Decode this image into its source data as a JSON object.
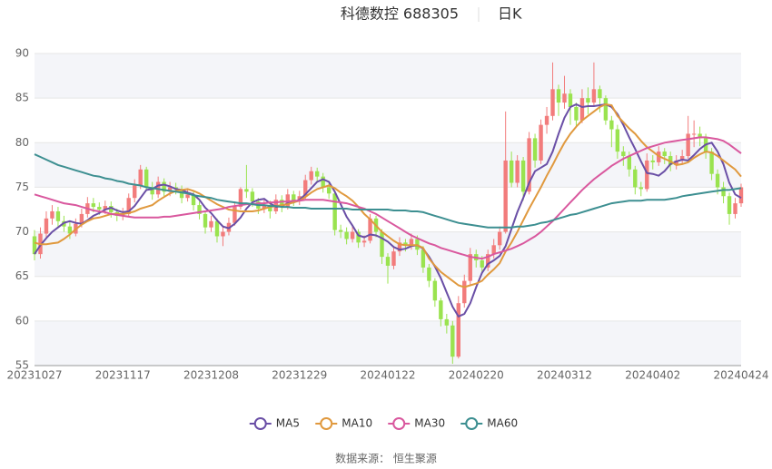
{
  "chart_data": {
    "type": "candlestick",
    "title": "科德数控 688305",
    "subtitle": "日K",
    "categories": [
      "20231027",
      null,
      null,
      null,
      null,
      null,
      null,
      null,
      null,
      null,
      null,
      null,
      null,
      null,
      null,
      "20231117",
      null,
      null,
      null,
      null,
      null,
      null,
      null,
      null,
      null,
      null,
      null,
      null,
      null,
      null,
      "20231208",
      null,
      null,
      null,
      null,
      null,
      null,
      null,
      null,
      null,
      null,
      null,
      null,
      null,
      null,
      "20231229",
      null,
      null,
      null,
      null,
      null,
      null,
      null,
      null,
      null,
      null,
      null,
      null,
      null,
      null,
      "20240122",
      null,
      null,
      null,
      null,
      null,
      null,
      null,
      null,
      null,
      null,
      null,
      null,
      null,
      null,
      "20240220",
      null,
      null,
      null,
      null,
      null,
      null,
      null,
      null,
      null,
      null,
      null,
      null,
      null,
      null,
      "20240312",
      null,
      null,
      null,
      null,
      null,
      null,
      null,
      null,
      null,
      null,
      null,
      null,
      null,
      null,
      "20240402",
      null,
      null,
      null,
      null,
      null,
      null,
      null,
      null,
      null,
      null,
      null,
      null,
      null,
      null,
      "20240424"
    ],
    "values": [
      [
        69.5,
        67.5,
        66.8,
        70.2
      ],
      [
        67.5,
        69.8,
        67.0,
        70.5
      ],
      [
        69.8,
        71.5,
        69.2,
        72.3
      ],
      [
        71.5,
        72.3,
        70.8,
        73.0
      ],
      [
        72.3,
        71.2,
        70.6,
        72.8
      ],
      [
        71.2,
        70.6,
        70.0,
        71.8
      ],
      [
        70.6,
        69.8,
        69.2,
        71.2
      ],
      [
        69.8,
        70.9,
        69.5,
        71.5
      ],
      [
        70.9,
        72.0,
        70.5,
        72.6
      ],
      [
        72.0,
        73.2,
        71.6,
        73.9
      ],
      [
        73.2,
        72.8,
        72.2,
        73.8
      ],
      [
        72.8,
        72.5,
        71.9,
        73.3
      ],
      [
        72.5,
        72.9,
        72.0,
        73.5
      ],
      [
        72.9,
        72.2,
        71.6,
        73.4
      ],
      [
        72.2,
        71.8,
        71.2,
        72.6
      ],
      [
        71.8,
        72.0,
        71.3,
        72.7
      ],
      [
        72.0,
        73.8,
        71.7,
        74.3
      ],
      [
        73.8,
        75.2,
        73.3,
        75.9
      ],
      [
        75.2,
        77.0,
        74.8,
        77.5
      ],
      [
        77.0,
        75.0,
        74.6,
        77.3
      ],
      [
        75.0,
        74.2,
        73.6,
        75.6
      ],
      [
        74.2,
        75.6,
        73.8,
        76.2
      ],
      [
        75.6,
        74.5,
        74.0,
        76.0
      ],
      [
        74.5,
        75.0,
        74.0,
        75.6
      ],
      [
        75.0,
        74.8,
        74.2,
        75.5
      ],
      [
        74.8,
        73.8,
        73.2,
        75.2
      ],
      [
        73.8,
        74.2,
        73.4,
        74.8
      ],
      [
        74.2,
        73.0,
        72.4,
        74.6
      ],
      [
        73.0,
        72.0,
        71.4,
        73.4
      ],
      [
        72.0,
        70.5,
        69.8,
        72.3
      ],
      [
        70.5,
        71.2,
        70.0,
        71.8
      ],
      [
        71.2,
        69.5,
        68.8,
        71.5
      ],
      [
        69.5,
        70.0,
        68.4,
        70.6
      ],
      [
        70.0,
        71.0,
        69.6,
        71.6
      ],
      [
        71.0,
        72.8,
        70.7,
        73.4
      ],
      [
        72.8,
        74.8,
        72.5,
        75.0
      ],
      [
        74.8,
        74.5,
        73.8,
        77.5
      ],
      [
        74.5,
        73.4,
        72.8,
        74.9
      ],
      [
        73.4,
        72.6,
        72.0,
        73.8
      ],
      [
        72.6,
        73.0,
        72.1,
        73.6
      ],
      [
        73.0,
        72.3,
        71.5,
        73.5
      ],
      [
        72.3,
        73.6,
        72.0,
        74.2
      ],
      [
        73.6,
        72.8,
        72.2,
        74.1
      ],
      [
        72.8,
        74.2,
        72.5,
        74.8
      ],
      [
        74.2,
        73.5,
        72.9,
        74.6
      ],
      [
        73.5,
        74.0,
        73.0,
        74.6
      ],
      [
        74.0,
        75.8,
        73.7,
        76.4
      ],
      [
        75.8,
        76.8,
        75.3,
        77.3
      ],
      [
        76.8,
        76.2,
        75.6,
        77.2
      ],
      [
        76.2,
        75.0,
        74.4,
        76.6
      ],
      [
        75.0,
        74.3,
        73.7,
        75.5
      ],
      [
        74.3,
        70.2,
        69.6,
        74.6
      ],
      [
        70.2,
        70.0,
        69.3,
        70.8
      ],
      [
        70.0,
        69.2,
        68.6,
        70.5
      ],
      [
        69.2,
        70.0,
        68.8,
        70.6
      ],
      [
        70.0,
        68.8,
        68.2,
        70.3
      ],
      [
        68.8,
        69.0,
        68.3,
        69.6
      ],
      [
        69.0,
        71.5,
        68.7,
        72.0
      ],
      [
        71.5,
        70.0,
        69.4,
        71.8
      ],
      [
        70.0,
        67.2,
        66.4,
        70.3
      ],
      [
        67.2,
        66.2,
        64.2,
        67.6
      ],
      [
        66.2,
        67.8,
        65.8,
        68.4
      ],
      [
        67.8,
        68.8,
        67.3,
        69.4
      ],
      [
        68.8,
        68.5,
        67.8,
        69.2
      ],
      [
        68.5,
        69.2,
        68.0,
        69.8
      ],
      [
        69.2,
        68.0,
        67.4,
        69.6
      ],
      [
        68.0,
        66.0,
        65.4,
        68.4
      ],
      [
        66.0,
        64.5,
        63.8,
        66.4
      ],
      [
        64.5,
        62.3,
        61.6,
        64.8
      ],
      [
        62.3,
        60.2,
        59.4,
        62.6
      ],
      [
        60.2,
        59.5,
        58.6,
        60.8
      ],
      [
        59.5,
        56.0,
        55.2,
        60.0
      ],
      [
        56.0,
        62.0,
        55.8,
        62.8
      ],
      [
        62.0,
        64.5,
        61.5,
        65.2
      ],
      [
        64.5,
        67.5,
        64.0,
        68.2
      ],
      [
        67.5,
        66.8,
        66.0,
        68.0
      ],
      [
        66.8,
        66.0,
        65.4,
        67.3
      ],
      [
        66.0,
        67.5,
        65.6,
        68.0
      ],
      [
        67.5,
        68.5,
        67.0,
        69.2
      ],
      [
        68.5,
        70.0,
        68.0,
        70.6
      ],
      [
        70.0,
        78.0,
        69.8,
        83.5
      ],
      [
        78.0,
        75.5,
        75.0,
        79.0
      ],
      [
        75.5,
        78.0,
        75.0,
        78.6
      ],
      [
        78.0,
        74.5,
        73.5,
        78.4
      ],
      [
        74.5,
        80.5,
        74.2,
        81.2
      ],
      [
        80.5,
        78.0,
        77.2,
        81.0
      ],
      [
        78.0,
        82.0,
        77.6,
        82.6
      ],
      [
        82.0,
        83.0,
        81.0,
        84.0
      ],
      [
        83.0,
        86.0,
        82.5,
        89.0
      ],
      [
        86.0,
        84.5,
        83.0,
        86.5
      ],
      [
        84.5,
        85.5,
        83.8,
        87.5
      ],
      [
        85.5,
        84.0,
        82.0,
        86.0
      ],
      [
        84.0,
        82.5,
        81.8,
        84.5
      ],
      [
        82.5,
        85.0,
        82.2,
        86.0
      ],
      [
        85.0,
        84.5,
        83.2,
        86.2
      ],
      [
        84.5,
        86.0,
        84.0,
        89.0
      ],
      [
        86.0,
        85.0,
        83.4,
        86.4
      ],
      [
        85.0,
        82.5,
        82.0,
        85.3
      ],
      [
        82.5,
        81.5,
        79.5,
        83.0
      ],
      [
        81.5,
        79.0,
        78.2,
        82.0
      ],
      [
        79.0,
        78.5,
        77.4,
        79.6
      ],
      [
        78.5,
        77.0,
        76.2,
        79.0
      ],
      [
        77.0,
        75.0,
        74.2,
        77.4
      ],
      [
        75.0,
        74.8,
        74.0,
        75.6
      ],
      [
        74.8,
        78.0,
        74.5,
        78.8
      ],
      [
        78.0,
        77.8,
        77.0,
        78.6
      ],
      [
        77.8,
        79.0,
        77.4,
        79.6
      ],
      [
        79.0,
        78.5,
        77.6,
        79.4
      ],
      [
        78.5,
        77.5,
        76.8,
        79.0
      ],
      [
        77.5,
        78.0,
        77.0,
        78.6
      ],
      [
        78.0,
        78.5,
        77.6,
        79.2
      ],
      [
        78.5,
        81.0,
        78.2,
        83.0
      ],
      [
        81.0,
        81.0,
        79.5,
        82.5
      ],
      [
        81.0,
        80.5,
        79.6,
        81.8
      ],
      [
        80.5,
        79.0,
        78.2,
        81.0
      ],
      [
        79.0,
        76.5,
        75.8,
        79.4
      ],
      [
        76.5,
        75.0,
        74.2,
        77.0
      ],
      [
        75.0,
        74.0,
        73.2,
        75.6
      ],
      [
        74.0,
        72.0,
        70.8,
        74.4
      ],
      [
        72.0,
        73.2,
        71.5,
        73.8
      ],
      [
        73.2,
        75.0,
        72.8,
        75.4
      ]
    ],
    "up_color": "#f27c7c",
    "down_color": "#9ae34f",
    "series": [
      {
        "name": "MA5",
        "color": "#6a4fa6",
        "values": [
          67.5,
          68.5,
          69.3,
          70.0,
          70.5,
          71.0,
          71.2,
          71.0,
          70.9,
          71.3,
          71.8,
          72.1,
          72.5,
          72.7,
          72.4,
          72.2,
          72.3,
          72.9,
          73.8,
          74.7,
          74.8,
          75.2,
          75.3,
          75.1,
          74.8,
          74.7,
          74.4,
          74.2,
          73.6,
          72.7,
          72.1,
          71.3,
          70.6,
          70.4,
          70.9,
          71.6,
          72.6,
          73.3,
          73.6,
          73.7,
          73.2,
          72.8,
          72.9,
          73.2,
          73.3,
          73.6,
          74.2,
          74.9,
          75.6,
          75.9,
          75.6,
          74.5,
          73.1,
          71.7,
          70.7,
          69.6,
          69.4,
          69.7,
          69.6,
          69.3,
          68.9,
          68.3,
          68.0,
          68.1,
          68.4,
          68.5,
          68.1,
          67.2,
          66.1,
          64.8,
          63.2,
          61.6,
          60.5,
          60.8,
          62.0,
          63.8,
          65.4,
          66.4,
          66.8,
          67.3,
          68.4,
          70.3,
          72.2,
          73.8,
          75.5,
          76.8,
          77.2,
          77.6,
          79.0,
          81.0,
          82.8,
          84.0,
          84.3,
          84.0,
          84.1,
          84.1,
          84.2,
          84.3,
          84.0,
          83.2,
          82.0,
          80.6,
          79.3,
          77.9,
          76.6,
          76.5,
          76.3,
          76.8,
          77.6,
          77.9,
          78.1,
          78.0,
          78.6,
          79.3,
          79.8,
          80.0,
          79.0,
          77.6,
          75.5,
          74.2,
          73.8
        ]
      },
      {
        "name": "MA10",
        "color": "#e0993e",
        "values": [
          68.8,
          68.6,
          68.6,
          68.7,
          68.8,
          69.2,
          69.7,
          70.3,
          70.8,
          71.2,
          71.5,
          71.6,
          71.8,
          72.0,
          72.0,
          72.0,
          72.1,
          72.3,
          72.6,
          72.8,
          73.0,
          73.5,
          73.9,
          74.3,
          74.6,
          74.7,
          74.8,
          74.6,
          74.3,
          73.9,
          73.5,
          73.1,
          72.8,
          72.5,
          72.4,
          72.3,
          72.3,
          72.3,
          72.4,
          72.6,
          72.8,
          72.9,
          73.0,
          73.1,
          73.3,
          73.5,
          73.9,
          74.4,
          74.8,
          75.0,
          75.2,
          74.9,
          74.4,
          74.0,
          73.5,
          72.8,
          72.0,
          71.4,
          70.7,
          70.0,
          69.5,
          69.0,
          68.6,
          68.5,
          68.5,
          68.5,
          68.2,
          67.0,
          66.2,
          65.5,
          65.0,
          64.5,
          64.0,
          63.8,
          64.0,
          64.2,
          64.5,
          65.2,
          65.8,
          66.5,
          67.8,
          68.8,
          70.0,
          71.3,
          72.6,
          73.8,
          75.0,
          76.3,
          77.5,
          78.8,
          80.0,
          81.0,
          81.8,
          82.5,
          83.0,
          83.5,
          84.0,
          84.3,
          84.2,
          83.0,
          82.3,
          81.6,
          81.0,
          80.2,
          79.5,
          79.0,
          78.5,
          78.2,
          77.9,
          77.5,
          77.6,
          77.8,
          78.3,
          78.7,
          79.0,
          78.9,
          78.5,
          78.0,
          77.5,
          77.0,
          76.2
        ]
      },
      {
        "name": "MA30",
        "color": "#d9589e",
        "values": [
          74.2,
          74.0,
          73.8,
          73.6,
          73.4,
          73.2,
          73.1,
          73.0,
          72.8,
          72.6,
          72.4,
          72.3,
          72.2,
          72.0,
          71.9,
          71.8,
          71.7,
          71.6,
          71.6,
          71.6,
          71.6,
          71.6,
          71.7,
          71.7,
          71.8,
          71.9,
          72.0,
          72.1,
          72.2,
          72.3,
          72.4,
          72.5,
          72.6,
          72.8,
          72.9,
          73.0,
          73.1,
          73.1,
          73.2,
          73.2,
          73.3,
          73.3,
          73.4,
          73.4,
          73.5,
          73.5,
          73.6,
          73.6,
          73.6,
          73.6,
          73.5,
          73.4,
          73.3,
          73.2,
          73.0,
          72.8,
          72.6,
          72.3,
          72.0,
          71.6,
          71.2,
          70.8,
          70.4,
          70.0,
          69.6,
          69.3,
          69.0,
          68.7,
          68.5,
          68.2,
          68.0,
          67.8,
          67.6,
          67.4,
          67.2,
          67.1,
          67.0,
          67.2,
          67.5,
          67.7,
          67.9,
          68.1,
          68.4,
          68.7,
          69.1,
          69.5,
          70.0,
          70.6,
          71.2,
          71.9,
          72.6,
          73.3,
          74.0,
          74.7,
          75.3,
          75.9,
          76.4,
          76.9,
          77.4,
          77.8,
          78.2,
          78.5,
          78.8,
          79.1,
          79.4,
          79.6,
          79.8,
          80.0,
          80.1,
          80.2,
          80.3,
          80.4,
          80.5,
          80.6,
          80.6,
          80.5,
          80.4,
          80.2,
          79.8,
          79.3,
          78.8
        ]
      },
      {
        "name": "MA60",
        "color": "#3d8f91",
        "values": [
          78.7,
          78.4,
          78.1,
          77.8,
          77.5,
          77.3,
          77.1,
          76.9,
          76.7,
          76.5,
          76.3,
          76.2,
          76.0,
          75.9,
          75.7,
          75.6,
          75.4,
          75.3,
          75.2,
          75.0,
          74.9,
          74.8,
          74.7,
          74.6,
          74.5,
          74.4,
          74.3,
          74.1,
          74.0,
          73.9,
          73.8,
          73.6,
          73.5,
          73.4,
          73.3,
          73.2,
          73.2,
          73.1,
          73.0,
          73.0,
          72.9,
          72.9,
          72.8,
          72.8,
          72.7,
          72.7,
          72.7,
          72.6,
          72.6,
          72.6,
          72.6,
          72.6,
          72.6,
          72.6,
          72.5,
          72.5,
          72.5,
          72.5,
          72.5,
          72.5,
          72.5,
          72.4,
          72.4,
          72.4,
          72.3,
          72.3,
          72.2,
          72.0,
          71.8,
          71.6,
          71.4,
          71.2,
          71.0,
          70.9,
          70.8,
          70.7,
          70.6,
          70.5,
          70.5,
          70.5,
          70.5,
          70.5,
          70.6,
          70.6,
          70.7,
          70.8,
          71.0,
          71.1,
          71.3,
          71.5,
          71.7,
          71.9,
          72.0,
          72.2,
          72.4,
          72.6,
          72.8,
          73.0,
          73.2,
          73.3,
          73.4,
          73.5,
          73.5,
          73.5,
          73.6,
          73.6,
          73.6,
          73.6,
          73.7,
          73.8,
          74.0,
          74.1,
          74.2,
          74.3,
          74.4,
          74.5,
          74.6,
          74.7,
          74.7,
          74.8,
          74.9
        ]
      }
    ],
    "ylim": [
      55,
      90
    ],
    "yticks": [
      55,
      60,
      65,
      70,
      75,
      80,
      85,
      90
    ],
    "grid": true,
    "split_area": true,
    "legend": "bottom",
    "source": "数据来源： 恒生聚源"
  }
}
